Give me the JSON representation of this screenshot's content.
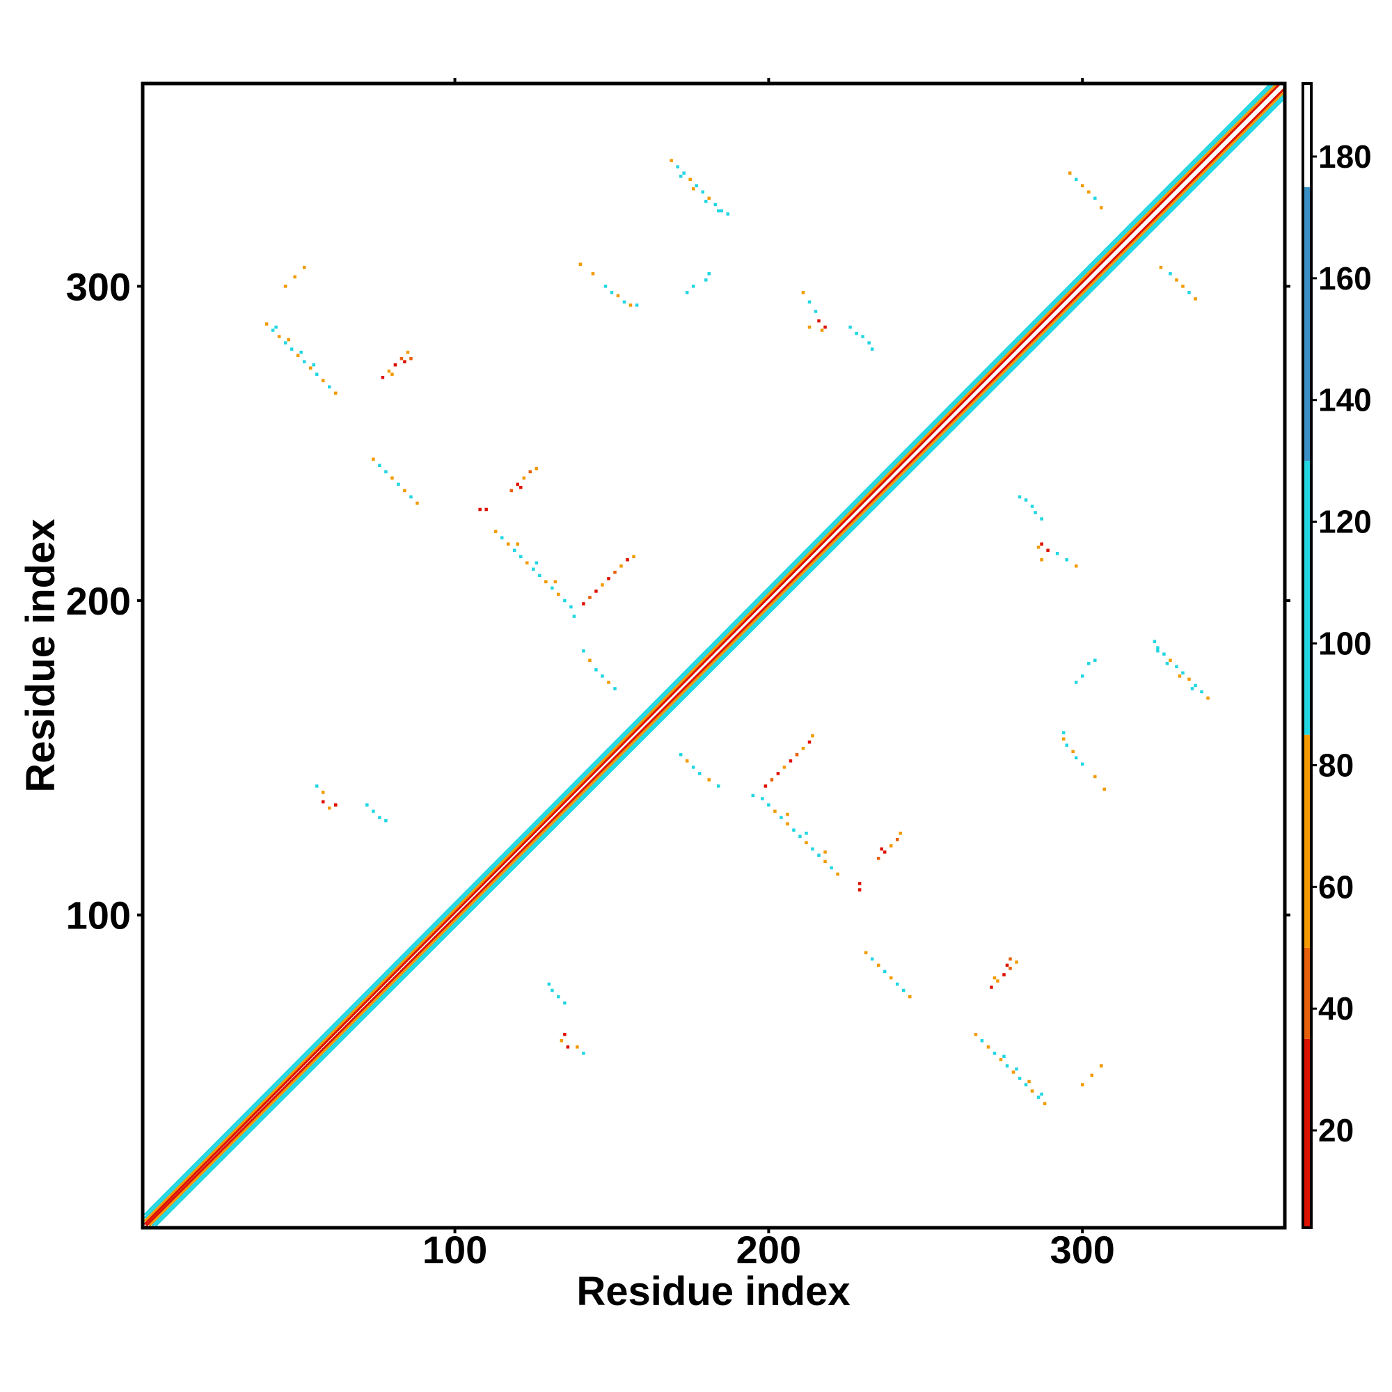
{
  "chart_data": {
    "type": "heatmap",
    "xlabel": "Residue index",
    "ylabel": "Residue index",
    "xlim": [
      0.5,
      364.5
    ],
    "ylim": [
      0.5,
      364.5
    ],
    "xticks": [
      100,
      200,
      300
    ],
    "yticks": [
      100,
      200,
      300
    ],
    "symmetric": true,
    "diagonal": {
      "offsets": [
        0,
        1,
        2,
        3,
        4
      ],
      "values": [
        185,
        25,
        65,
        105,
        90
      ]
    },
    "contacts": {
      "x": [
        40,
        42,
        44,
        46,
        48,
        50,
        52,
        54,
        56,
        58,
        60,
        62,
        43,
        47,
        51,
        55,
        77,
        79,
        81,
        83,
        85,
        80,
        84,
        86,
        74,
        76,
        78,
        80,
        82,
        84,
        86,
        88,
        108,
        110,
        118,
        120,
        122,
        124,
        126,
        121,
        113,
        115,
        117,
        119,
        121,
        123,
        125,
        127,
        129,
        131,
        133,
        135,
        137,
        138,
        120,
        126,
        132,
        141,
        143,
        145,
        147,
        149,
        151,
        153,
        155,
        157,
        141,
        143,
        145,
        147,
        149,
        151,
        140,
        144,
        148,
        150,
        152,
        154,
        156,
        158,
        174,
        176,
        180,
        181,
        169,
        171,
        173,
        175,
        177,
        179,
        181,
        183,
        185,
        187,
        172,
        176,
        180,
        184,
        211,
        213,
        215,
        216,
        218,
        213,
        217,
        226,
        228,
        230,
        232,
        233,
        296,
        298,
        300,
        302,
        304,
        306,
        56,
        58,
        58,
        60,
        62,
        72,
        74,
        76,
        78,
        46,
        49,
        52
      ],
      "y": [
        288,
        286,
        284,
        282,
        280,
        278,
        276,
        274,
        272,
        270,
        268,
        266,
        287,
        283,
        279,
        275,
        271,
        273,
        275,
        277,
        279,
        272,
        276,
        277,
        245,
        243,
        241,
        239,
        237,
        235,
        233,
        231,
        229,
        229,
        235,
        237,
        239,
        241,
        242,
        236,
        222,
        220,
        218,
        216,
        214,
        212,
        210,
        208,
        206,
        204,
        202,
        200,
        198,
        195,
        218,
        212,
        206,
        199,
        201,
        203,
        205,
        207,
        209,
        211,
        213,
        214,
        184,
        181,
        178,
        176,
        174,
        172,
        307,
        304,
        300,
        298,
        297,
        295,
        294,
        294,
        298,
        300,
        302,
        304,
        340,
        338,
        336,
        334,
        332,
        330,
        328,
        326,
        324,
        323,
        335,
        331,
        327,
        324,
        298,
        295,
        292,
        289,
        287,
        287,
        286,
        287,
        285,
        284,
        282,
        280,
        336,
        334,
        332,
        330,
        328,
        325,
        141,
        139,
        136,
        134,
        135,
        135,
        133,
        131,
        130,
        300,
        303,
        306
      ],
      "values": [
        70,
        105,
        70,
        105,
        105,
        70,
        105,
        70,
        105,
        70,
        105,
        70,
        105,
        70,
        105,
        105,
        25,
        65,
        25,
        45,
        65,
        65,
        25,
        45,
        70,
        105,
        105,
        70,
        105,
        70,
        105,
        70,
        25,
        25,
        45,
        25,
        65,
        45,
        65,
        25,
        70,
        105,
        70,
        105,
        105,
        70,
        105,
        105,
        70,
        105,
        70,
        105,
        105,
        105,
        70,
        105,
        70,
        25,
        45,
        25,
        65,
        25,
        45,
        65,
        25,
        65,
        105,
        65,
        105,
        105,
        65,
        105,
        65,
        65,
        105,
        105,
        65,
        105,
        65,
        105,
        105,
        105,
        105,
        105,
        65,
        105,
        105,
        65,
        105,
        105,
        70,
        105,
        105,
        105,
        105,
        70,
        105,
        105,
        65,
        105,
        105,
        25,
        25,
        65,
        65,
        105,
        105,
        105,
        105,
        105,
        65,
        105,
        65,
        65,
        105,
        65,
        105,
        65,
        25,
        65,
        25,
        105,
        105,
        105,
        105,
        65,
        65,
        65
      ]
    },
    "colorbar": {
      "lim": [
        4,
        192
      ],
      "ticks": [
        20,
        40,
        60,
        80,
        100,
        120,
        140,
        160,
        180
      ],
      "bounds": [
        4,
        35,
        50,
        85,
        130,
        175,
        192
      ],
      "colors": [
        "#dd1100",
        "#e8600a",
        "#f29a00",
        "#22d6e2",
        "#3a8fc4",
        "#ffffff"
      ]
    }
  }
}
